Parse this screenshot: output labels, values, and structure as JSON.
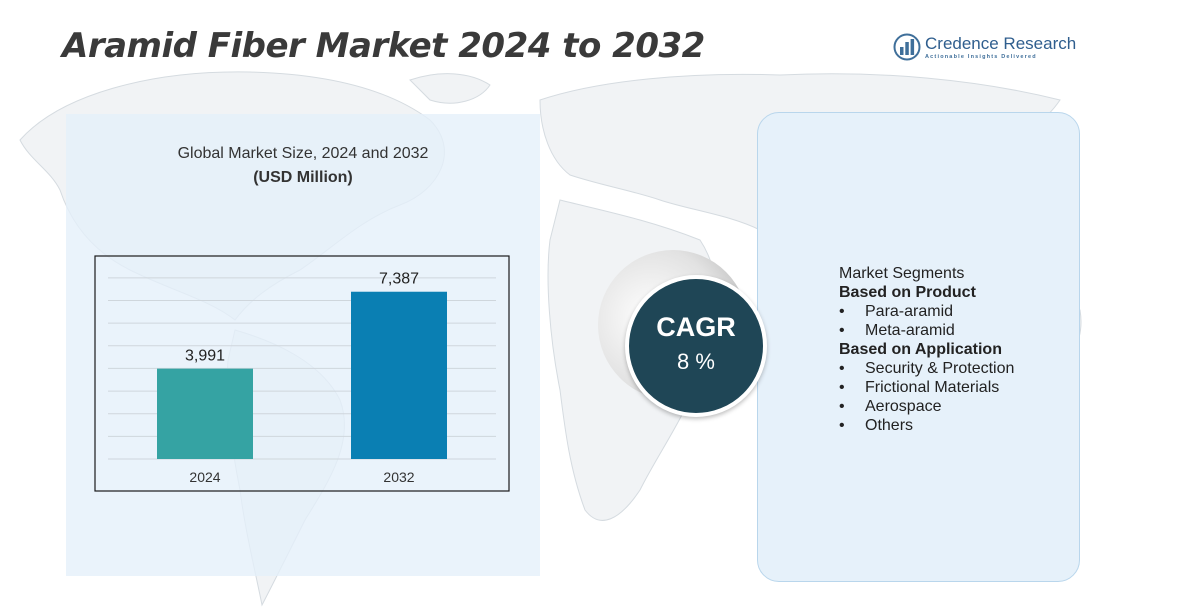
{
  "header": {
    "title": "Aramid Fiber Market 2024 to 2032",
    "logo_name": "Credence Research",
    "logo_tagline": "Actionable Insights Delivered"
  },
  "chart_data": {
    "type": "bar",
    "title": "Global Market Size, 2024 and 2032",
    "subtitle": "(USD Million)",
    "categories": [
      "2024",
      "2032"
    ],
    "values": [
      3991,
      7387
    ],
    "value_labels": [
      "3,991",
      "7,387"
    ],
    "bar_colors": [
      "#35a3a3",
      "#0a7fb3"
    ],
    "ylim": [
      0,
      8700
    ],
    "grid": true,
    "xlabel": "",
    "ylabel": ""
  },
  "cagr": {
    "label": "CAGR",
    "value": "8 %"
  },
  "segments": {
    "heading": "Market Segments",
    "groups": [
      {
        "title": "Based on Product",
        "items": [
          "Para-aramid",
          "Meta-aramid"
        ]
      },
      {
        "title": "Based on Application",
        "items": [
          "Security & Protection",
          "Frictional Materials",
          "Aerospace",
          "Others"
        ]
      }
    ]
  },
  "colors": {
    "title": "#3a3a3a",
    "brand": "#2f5e8e",
    "panel": "#e6f1fa",
    "cagr_circle": "#1f4656"
  }
}
